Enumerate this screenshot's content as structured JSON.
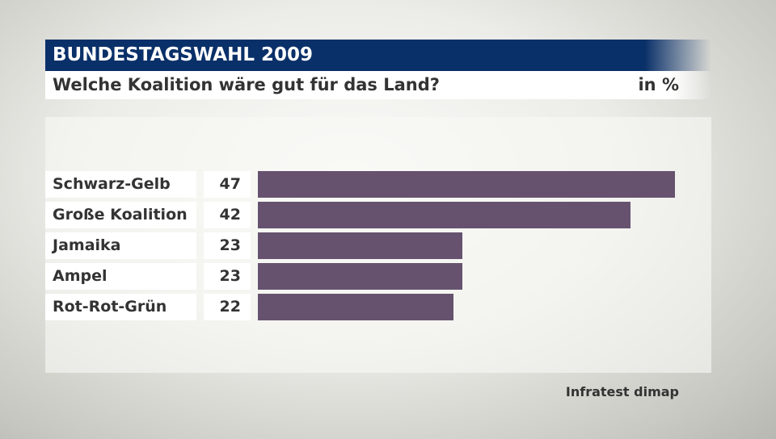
{
  "header": {
    "title": "BUNDESTAGSWAHL 2009",
    "subtitle": "Welche Koalition wäre gut für das Land?",
    "unit": "in %"
  },
  "source": "Infratest dimap",
  "chart_data": {
    "type": "bar",
    "orientation": "horizontal",
    "title": "Welche Koalition wäre gut für das Land?",
    "unit": "in %",
    "categories": [
      "Schwarz-Gelb",
      "Große Koalition",
      "Jamaika",
      "Ampel",
      "Rot-Rot-Grün"
    ],
    "values": [
      47,
      42,
      23,
      23,
      22
    ],
    "bar_color": "#66526f",
    "xlim": [
      0,
      47
    ]
  }
}
